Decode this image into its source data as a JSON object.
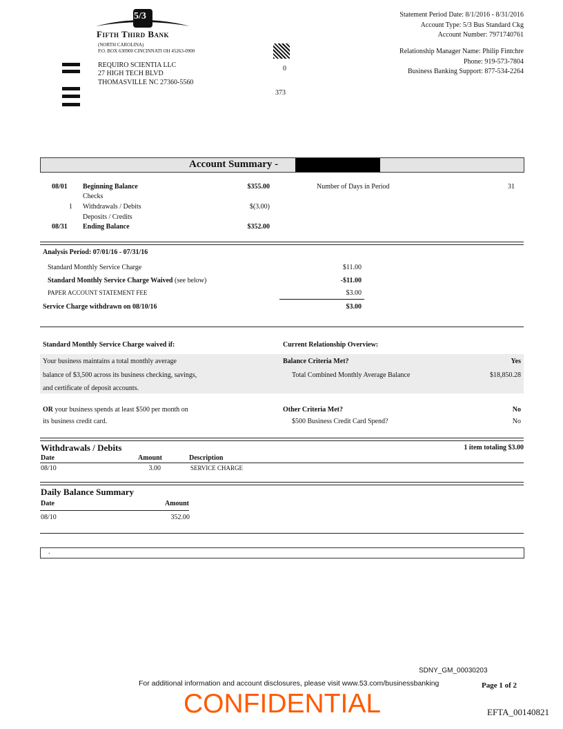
{
  "bank": {
    "name": "Fifth Third Bank",
    "logo_text": "5/3",
    "state": "(NORTH CAROLINA)",
    "address": "P.O. BOX 630900 CINCINNATI OH  45263-0900"
  },
  "customer": {
    "name": "REQUIRO SCIENTIA LLC",
    "street": "27 HIGH TECH BLVD",
    "city": "THOMASVILLE NC  27360-5560"
  },
  "codes": {
    "a": "0",
    "b": "373"
  },
  "header": {
    "period": "Statement Period Date: 8/1/2016 - 8/31/2016",
    "type": "Account Type: 5/3 Bus Standard Ckg",
    "number": "Account Number: 7971740761",
    "rm": "Relationship Manager Name: Philip Fintchre",
    "phone": "Phone: 919-573-7804",
    "support": "Business Banking Support: 877-534-2264"
  },
  "summary": {
    "title": "Account Summary -",
    "begin_date": "08/01",
    "begin_label": "Beginning Balance",
    "begin_amt": "$355.00",
    "checks": "Checks",
    "wd_count": "1",
    "wd_label": "Withdrawals / Debits",
    "wd_amt": "$(3.00)",
    "dep_label": "Deposits / Credits",
    "end_date": "08/31",
    "end_label": "Ending Balance",
    "end_amt": "$352.00",
    "days_label": "Number of Days in Period",
    "days": "31"
  },
  "analysis": {
    "period": "Analysis Period: 07/01/16 - 07/31/16",
    "smsc": "Standard Monthly Service Charge",
    "smsc_amt": "$11.00",
    "waived": "Standard Monthly Service Charge Waived",
    "waived_note": "(see below)",
    "waived_amt": "-$11.00",
    "paper": "PAPER ACCOUNT STATEMENT FEE",
    "paper_amt": "$3.00",
    "withdrawn": "Service Charge withdrawn on 08/10/16",
    "withdrawn_amt": "$3.00"
  },
  "waiver": {
    "title": "Standard Monthly Service Charge waived if:",
    "l1": "Your business maintains a total monthly average",
    "l2": "balance of $3,500 across its business checking, savings,",
    "l3": "and certificate of deposit accounts.",
    "or": "OR",
    "l4": "your business spends at least $500 per month on",
    "l5": "its business credit card.",
    "rel_title": "Current Relationship Overview:",
    "bal_met": "Balance Criteria Met?",
    "bal_met_val": "Yes",
    "tcmab": "Total Combined Monthly Average Balance",
    "tcmab_val": "$18,850.28",
    "other_met": "Other Criteria Met?",
    "other_met_val": "No",
    "cc": "$500 Business Credit Card Spend?",
    "cc_val": "No"
  },
  "withdrawals": {
    "title": "Withdrawals / Debits",
    "total": "1 item totaling $3.00",
    "cols": [
      "Date",
      "Amount",
      "Description"
    ],
    "rows": [
      [
        "08/10",
        "3.00",
        "SERVICE CHARGE"
      ]
    ]
  },
  "daily": {
    "title": "Daily Balance Summary",
    "cols": [
      "Date",
      "Amount"
    ],
    "rows": [
      [
        "08/10",
        "352.00"
      ]
    ]
  },
  "note": ".",
  "footer": {
    "disclosure": "For additional information and account disclosures, please visit www.53.com/businessbanking",
    "bates": "SDNY_GM_00030203",
    "page": "Page 1 of 2",
    "watermark": "CONFIDENTIAL",
    "efta": "EFTA_00140821"
  }
}
